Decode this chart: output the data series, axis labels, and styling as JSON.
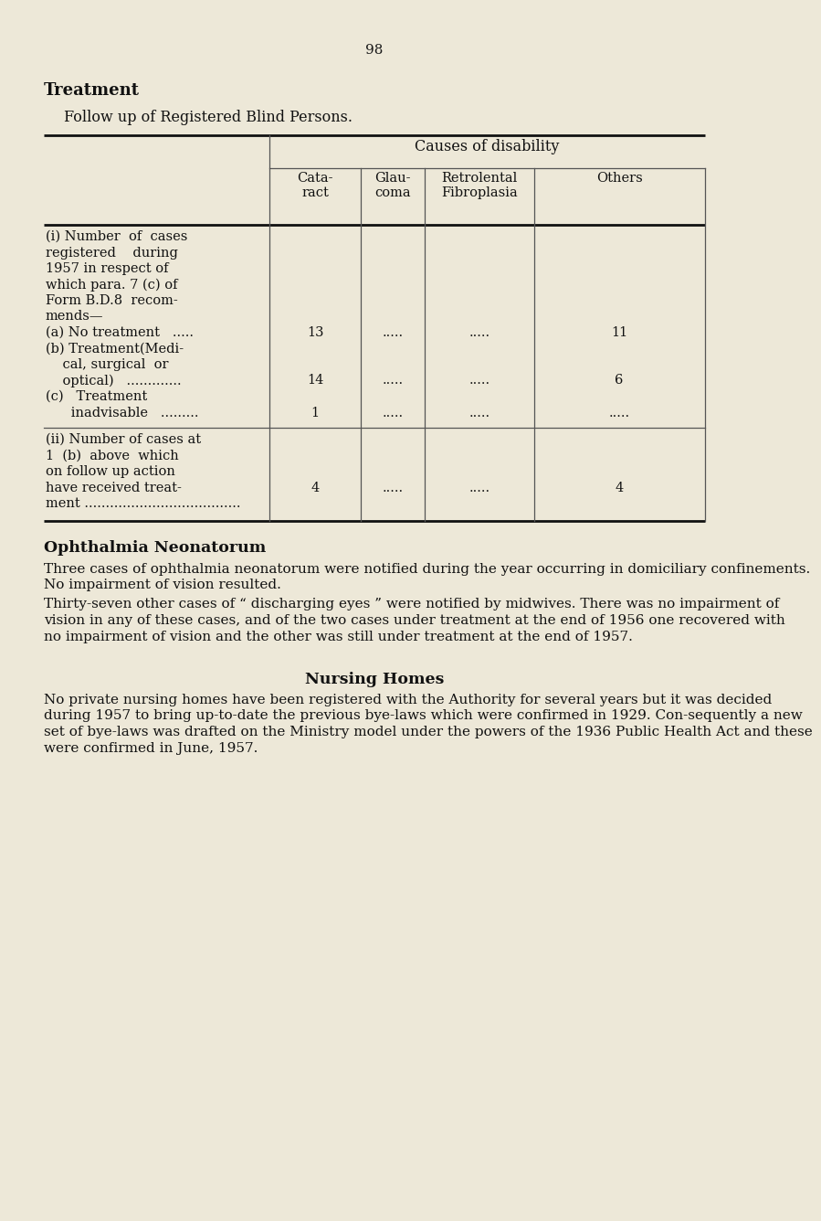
{
  "page_number": "98",
  "background_color": "#ede8d8",
  "title_bold": "Treatment",
  "subtitle": "Follow up of Registered Blind Persons.",
  "table_header_group": "Causes of disability",
  "col_headers": [
    "Cata-\nract",
    "Glau-\ncoma",
    "Retrolental\nFibroplasia",
    "Others"
  ],
  "row_groups": [
    {
      "label_lines": [
        "(i) Number  of  cases",
        "registered    during",
        "1957 in respect of",
        "which para. 7 (c) of",
        "Form B.D.8  recom-",
        "mends—"
      ],
      "sub_rows": [
        {
          "label": "(a) No treatment   .....",
          "values": [
            "13",
            ".....",
            ".....",
            "11"
          ]
        },
        {
          "label_lines": [
            "(b) Treatment(Medi-",
            "    cal, surgical  or",
            "    optical)   ............."
          ],
          "values": [
            "14",
            ".....",
            ".....",
            "6"
          ],
          "val_line": 2
        },
        {
          "label_lines": [
            "(c)   Treatment",
            "      inadvisable   ........."
          ],
          "values": [
            "1",
            ".....",
            ".....",
            "....."
          ],
          "val_line": 1
        }
      ]
    },
    {
      "label_lines": [
        "(ii) Number of cases at",
        "1  (b)  above  which",
        "on follow up action",
        "have received treat-",
        "ment ....................................."
      ],
      "sub_rows": [
        {
          "label": "",
          "values": [
            "4",
            ".....",
            ".....",
            "4"
          ],
          "val_line": 4
        }
      ]
    }
  ],
  "section2_title": "Ophthalmia Neonatorum",
  "section2_para1": "Three cases of ophthalmia neonatorum were notified during the year occurring in domiciliary confinements.  No impairment of vision resulted.",
  "section2_para2": "Thirty-seven other cases of “ discharging eyes ” were notified by midwives.  There was no impairment of vision in any of these cases, and of the two cases under treatment at the end of 1956 one recovered with no impairment of vision and the other was still under treatment at the end of 1957.",
  "section3_title": "Nursing Homes",
  "section3_para": "No private nursing homes have been registered with the Authority for several years but it was decided during 1957 to bring up-to-date the previous bye-laws which were confirmed in 1929.  Con-sequently a new set of bye-laws was drafted on the Ministry model under the powers of the 1936 Public Health Act and these were confirmed in June, 1957."
}
